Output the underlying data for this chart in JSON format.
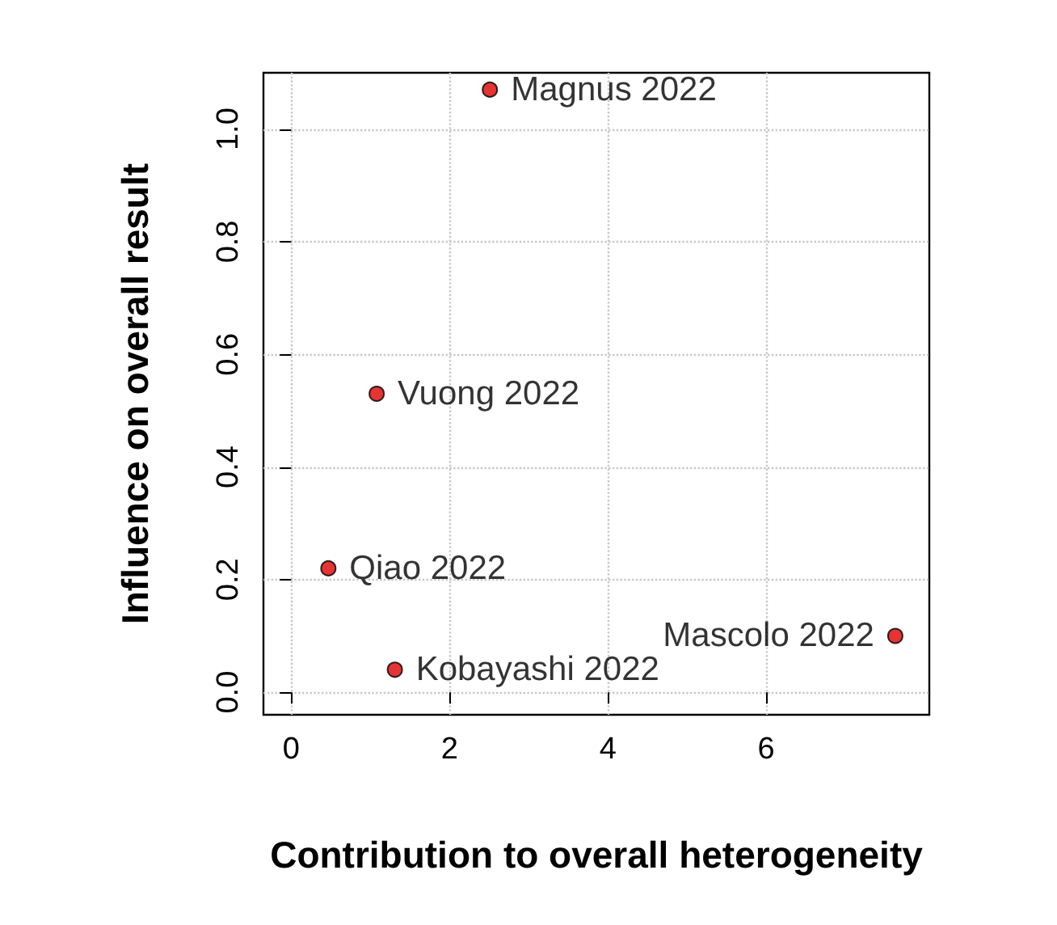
{
  "chart_data": {
    "type": "scatter",
    "xlabel": "Contribution to overall heterogeneity",
    "ylabel": "Influence on overall result",
    "series": [
      {
        "name": "Magnus 2022",
        "color": "#e00000",
        "x": [
          2.51
        ],
        "values": [
          1.07
        ]
      },
      {
        "name": "Vuong 2022",
        "color": "#e00000",
        "x": [
          1.08
        ],
        "values": [
          0.53
        ]
      },
      {
        "name": "Qiao 2022",
        "color": "#e00000",
        "x": [
          0.47
        ],
        "values": [
          0.22
        ]
      },
      {
        "name": "Kobayashi 2022",
        "color": "#e00000",
        "x": [
          1.31
        ],
        "values": [
          0.04
        ]
      },
      {
        "name": "Mascolo 2022",
        "color": "#e00000",
        "x": [
          7.63
        ],
        "values": [
          0.1
        ]
      }
    ],
    "xlim": [
      -0.35,
      8.06
    ],
    "ylim": [
      -0.04,
      1.1
    ],
    "xticks": [
      0,
      2,
      4,
      6
    ],
    "yticks": [
      {
        "value": 0,
        "label": "0.0"
      },
      {
        "value": 0.2,
        "label": "0.2"
      },
      {
        "value": 0.4,
        "label": "0.4"
      },
      {
        "value": 0.6,
        "label": "0.6"
      },
      {
        "value": 0.8,
        "label": "0.8"
      },
      {
        "value": 1,
        "label": "1.0"
      }
    ],
    "grid": true,
    "marker": "circle"
  }
}
